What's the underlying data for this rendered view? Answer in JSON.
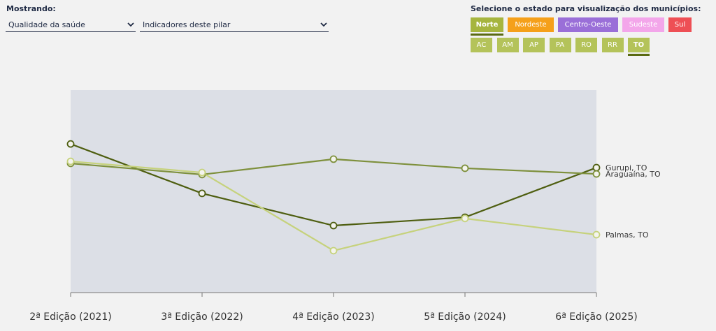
{
  "controls": {
    "showing_label": "Mostrando:",
    "dropdowns": [
      "Qualidade da saúde",
      "Indicadores deste pilar"
    ],
    "state_prompt": "Selecione o estado para visualização dos municípios:",
    "regions": [
      {
        "label": "Norte",
        "color": "#a6b53f",
        "selected": true
      },
      {
        "label": "Nordeste",
        "color": "#f5a01a",
        "selected": false
      },
      {
        "label": "Centro-Oeste",
        "color": "#9a6fd8",
        "selected": false
      },
      {
        "label": "Sudeste",
        "color": "#f3a6ea",
        "selected": false
      },
      {
        "label": "Sul",
        "color": "#ee4f55",
        "selected": false
      }
    ],
    "states": [
      {
        "label": "AC",
        "selected": false
      },
      {
        "label": "AM",
        "selected": false
      },
      {
        "label": "AP",
        "selected": false
      },
      {
        "label": "PA",
        "selected": false
      },
      {
        "label": "RO",
        "selected": false
      },
      {
        "label": "RR",
        "selected": false
      },
      {
        "label": "TO",
        "selected": true
      }
    ],
    "states_color": "#b4c35a"
  },
  "chart_data": {
    "type": "line",
    "categories": [
      "2ª Edição (2021)",
      "3ª Edição (2022)",
      "4ª Edição (2023)",
      "5ª Edição (2024)",
      "6ª Edição (2025)"
    ],
    "ylim": [
      0,
      100
    ],
    "series": [
      {
        "name": "Gurupi, TO",
        "color": "#4e5e10",
        "values": [
          73.4,
          49.0,
          33.1,
          37.2,
          61.7
        ]
      },
      {
        "name": "Araguaína, TO",
        "color": "#7e903c",
        "values": [
          63.8,
          58.3,
          65.9,
          61.4,
          58.6
        ]
      },
      {
        "name": "Palmas, TO",
        "color": "#c6d27c",
        "values": [
          64.8,
          59.3,
          20.7,
          36.6,
          28.6
        ]
      }
    ]
  }
}
